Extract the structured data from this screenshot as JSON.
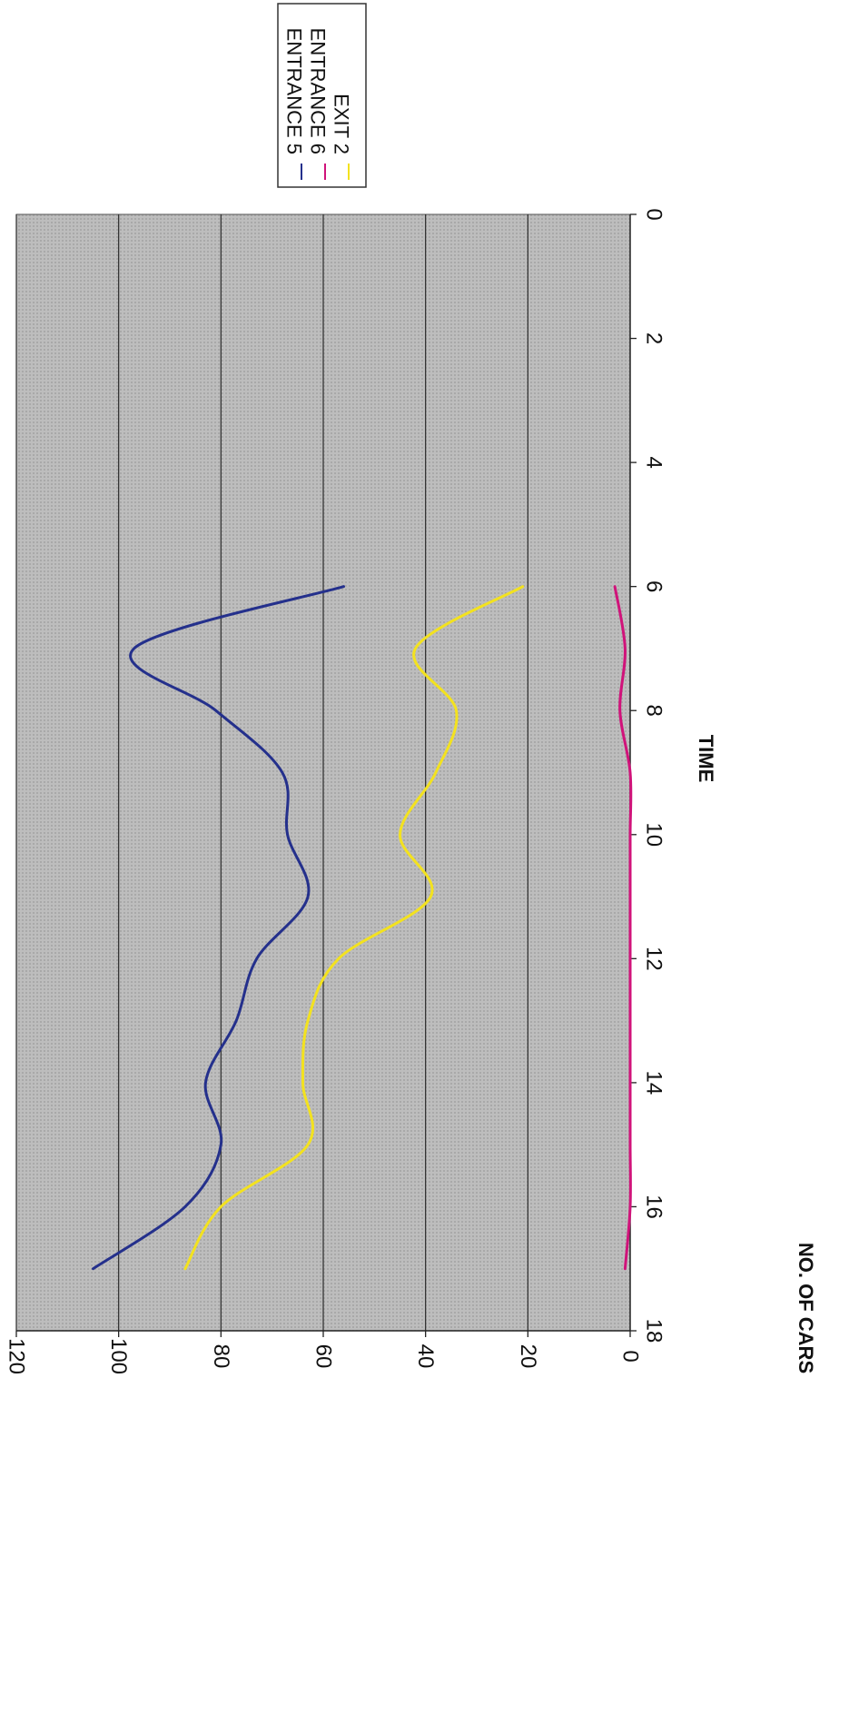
{
  "chart_data": {
    "type": "line",
    "title": "",
    "xlabel": "TIME",
    "ylabel": "NO. OF CARS",
    "xlim": [
      0,
      18
    ],
    "ylim": [
      0,
      120
    ],
    "x_ticks": [
      0,
      2,
      4,
      6,
      8,
      10,
      12,
      14,
      16,
      18
    ],
    "y_ticks": [
      0,
      20,
      40,
      60,
      80,
      100,
      120
    ],
    "grid": true,
    "legend_position": "right",
    "orientation": "rotated 90 degrees clockwise",
    "plot_background": "#b9b9b9",
    "series": [
      {
        "name": "ENTRANCE 5",
        "color": "#24308c",
        "x": [
          6,
          7,
          8,
          9,
          10,
          11,
          12,
          13,
          14,
          15,
          16,
          17
        ],
        "y": [
          56,
          97,
          81,
          68,
          67,
          63,
          73,
          77,
          83,
          80,
          87,
          105
        ]
      },
      {
        "name": "ENTRANCE 6",
        "color": "#d0137a",
        "x": [
          6,
          7,
          8,
          9,
          10,
          11,
          12,
          13,
          14,
          15,
          16,
          17
        ],
        "y": [
          3,
          1,
          2,
          0,
          0,
          0,
          0,
          0,
          0,
          0,
          0,
          1
        ]
      },
      {
        "name": "EXIT 2",
        "color": "#f3e21f",
        "x": [
          6,
          7,
          8,
          9,
          10,
          11,
          12,
          13,
          14,
          15,
          16,
          17
        ],
        "y": [
          21,
          42,
          34,
          38,
          45,
          39,
          57,
          63,
          64,
          63,
          80,
          87
        ]
      }
    ]
  }
}
